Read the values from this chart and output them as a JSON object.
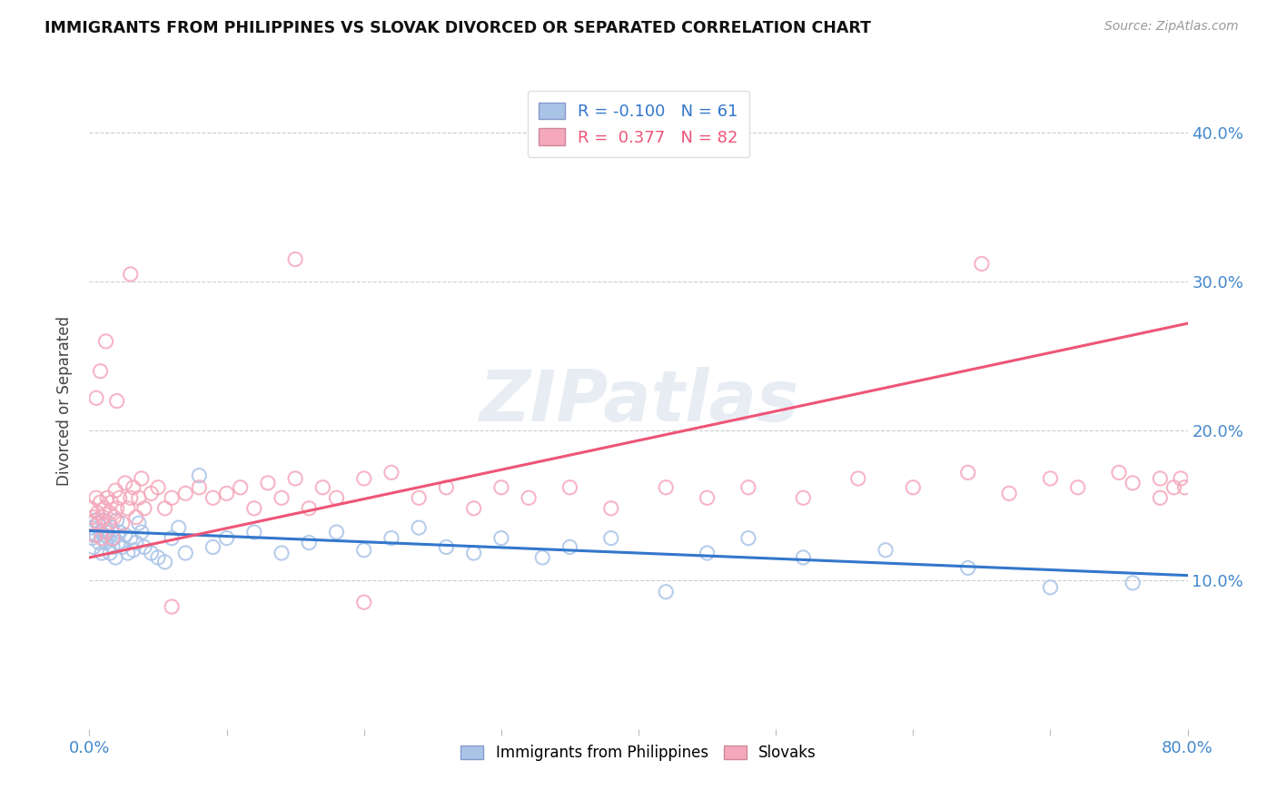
{
  "title": "IMMIGRANTS FROM PHILIPPINES VS SLOVAK DIVORCED OR SEPARATED CORRELATION CHART",
  "source": "Source: ZipAtlas.com",
  "ylabel": "Divorced or Separated",
  "xlim": [
    0.0,
    0.8
  ],
  "ylim": [
    0.0,
    0.44
  ],
  "xticks": [
    0.0,
    0.1,
    0.2,
    0.3,
    0.4,
    0.5,
    0.6,
    0.7,
    0.8
  ],
  "yticks": [
    0.1,
    0.2,
    0.3,
    0.4
  ],
  "ytick_labels": [
    "10.0%",
    "20.0%",
    "30.0%",
    "40.0%"
  ],
  "xtick_labels_show": {
    "0.0": "0.0%",
    "0.8": "80.0%"
  },
  "blue_R": -0.1,
  "blue_N": 61,
  "pink_R": 0.377,
  "pink_N": 82,
  "blue_color": "#aac4e8",
  "pink_color": "#f5a8bc",
  "blue_line_color": "#3377cc",
  "pink_line_color": "#ee5577",
  "watermark": "ZIPatlas",
  "legend_blue_label": "Immigrants from Philippines",
  "legend_pink_label": "Slovaks",
  "blue_line_x0": 0.0,
  "blue_line_y0": 0.133,
  "blue_line_x1": 0.8,
  "blue_line_y1": 0.103,
  "pink_line_x0": 0.0,
  "pink_line_y0": 0.115,
  "pink_line_x1": 0.8,
  "pink_line_y1": 0.272,
  "blue_points_x": [
    0.001,
    0.002,
    0.003,
    0.004,
    0.005,
    0.006,
    0.007,
    0.008,
    0.009,
    0.01,
    0.011,
    0.012,
    0.013,
    0.014,
    0.015,
    0.016,
    0.017,
    0.018,
    0.019,
    0.02,
    0.021,
    0.022,
    0.024,
    0.026,
    0.028,
    0.03,
    0.032,
    0.034,
    0.036,
    0.038,
    0.04,
    0.045,
    0.05,
    0.055,
    0.06,
    0.065,
    0.07,
    0.08,
    0.09,
    0.1,
    0.12,
    0.14,
    0.16,
    0.18,
    0.2,
    0.22,
    0.24,
    0.26,
    0.28,
    0.3,
    0.33,
    0.35,
    0.38,
    0.42,
    0.45,
    0.48,
    0.52,
    0.58,
    0.64,
    0.7,
    0.76
  ],
  "blue_points_y": [
    0.135,
    0.128,
    0.122,
    0.14,
    0.13,
    0.138,
    0.125,
    0.132,
    0.118,
    0.14,
    0.13,
    0.125,
    0.132,
    0.128,
    0.118,
    0.135,
    0.122,
    0.128,
    0.115,
    0.14,
    0.125,
    0.132,
    0.122,
    0.13,
    0.118,
    0.128,
    0.12,
    0.125,
    0.138,
    0.132,
    0.122,
    0.118,
    0.115,
    0.112,
    0.128,
    0.135,
    0.118,
    0.17,
    0.122,
    0.128,
    0.132,
    0.118,
    0.125,
    0.132,
    0.12,
    0.128,
    0.135,
    0.122,
    0.118,
    0.128,
    0.115,
    0.122,
    0.128,
    0.092,
    0.118,
    0.128,
    0.115,
    0.12,
    0.108,
    0.095,
    0.098
  ],
  "pink_points_x": [
    0.001,
    0.002,
    0.003,
    0.004,
    0.005,
    0.006,
    0.007,
    0.008,
    0.009,
    0.01,
    0.011,
    0.012,
    0.013,
    0.014,
    0.015,
    0.016,
    0.017,
    0.018,
    0.019,
    0.02,
    0.022,
    0.024,
    0.026,
    0.028,
    0.03,
    0.032,
    0.034,
    0.036,
    0.038,
    0.04,
    0.045,
    0.05,
    0.055,
    0.06,
    0.07,
    0.08,
    0.09,
    0.1,
    0.11,
    0.12,
    0.13,
    0.14,
    0.15,
    0.16,
    0.17,
    0.18,
    0.2,
    0.22,
    0.24,
    0.26,
    0.28,
    0.3,
    0.32,
    0.35,
    0.38,
    0.42,
    0.45,
    0.48,
    0.52,
    0.56,
    0.6,
    0.64,
    0.67,
    0.7,
    0.72,
    0.75,
    0.76,
    0.78,
    0.78,
    0.79,
    0.795,
    0.798,
    0.005,
    0.008,
    0.012,
    0.02,
    0.03,
    0.15,
    0.4,
    0.65,
    0.2,
    0.06
  ],
  "pink_points_y": [
    0.148,
    0.138,
    0.142,
    0.13,
    0.155,
    0.145,
    0.138,
    0.152,
    0.128,
    0.142,
    0.148,
    0.132,
    0.155,
    0.138,
    0.145,
    0.152,
    0.128,
    0.142,
    0.16,
    0.148,
    0.155,
    0.138,
    0.165,
    0.148,
    0.155,
    0.162,
    0.142,
    0.155,
    0.168,
    0.148,
    0.158,
    0.162,
    0.148,
    0.155,
    0.158,
    0.162,
    0.155,
    0.158,
    0.162,
    0.148,
    0.165,
    0.155,
    0.168,
    0.148,
    0.162,
    0.155,
    0.168,
    0.172,
    0.155,
    0.162,
    0.148,
    0.162,
    0.155,
    0.162,
    0.148,
    0.162,
    0.155,
    0.162,
    0.155,
    0.168,
    0.162,
    0.172,
    0.158,
    0.168,
    0.162,
    0.172,
    0.165,
    0.168,
    0.155,
    0.162,
    0.168,
    0.162,
    0.222,
    0.24,
    0.26,
    0.22,
    0.305,
    0.315,
    0.4,
    0.312,
    0.085,
    0.082
  ]
}
